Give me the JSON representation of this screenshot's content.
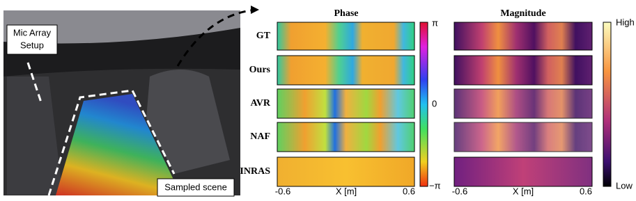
{
  "photo": {
    "callouts": {
      "mic_array": [
        "Mic Array",
        "Setup"
      ],
      "sampled_scene": "Sampled scene"
    }
  },
  "phase": {
    "title": "Phase",
    "rows": [
      "GT",
      "Ours",
      "AVR",
      "NAF",
      "INRAS"
    ],
    "colorbar": {
      "top": "π",
      "middle": "0",
      "bottom": "−π"
    },
    "x_axis": {
      "label": "X [m]",
      "ticks": [
        "-0.6",
        "0.6"
      ]
    }
  },
  "magnitude": {
    "title": "Magnitude",
    "colorbar": {
      "top": "High",
      "bottom": "Low"
    },
    "x_axis": {
      "label": "X [m]",
      "ticks": [
        "-0.6",
        "0.6"
      ]
    }
  }
}
